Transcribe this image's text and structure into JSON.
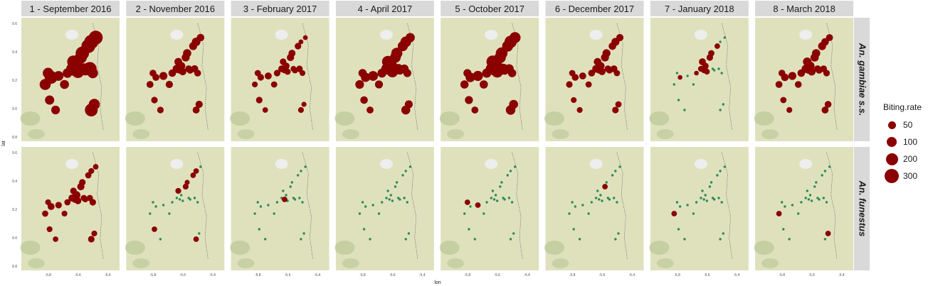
{
  "colors": {
    "high": "#8b0000",
    "low": "#2e8b57",
    "map_bg": "#dfe1bd",
    "strip_bg": "#d9d9d9",
    "water": "#eeeeee",
    "forest": "#b9c795"
  },
  "chart_data": {
    "type": "scatter",
    "title": "",
    "xlabel": "lon",
    "ylabel": "lat",
    "x_ticks": [
      "-5.8",
      "-5.6",
      "-5.4"
    ],
    "y_ticks": [
      "8.8",
      "9.0",
      "9.2",
      "9.4",
      "9.6"
    ],
    "xlim": [
      -5.98,
      -5.32
    ],
    "ylim": [
      8.77,
      9.64
    ],
    "facets": {
      "columns": [
        "1 - September 2016",
        "2 - November 2016",
        "3 - February 2017",
        "4 - April 2017",
        "5 - October 2017",
        "6 - December 2017",
        "7 - January 2018",
        "8 - March 2018"
      ],
      "rows": [
        "An. gambiae s.s.",
        "An. funestus"
      ]
    },
    "legend": {
      "title": "Biting.rate",
      "position": "right",
      "entries": [
        {
          "label": "50",
          "value": 50
        },
        {
          "label": "100",
          "value": 100
        },
        {
          "label": "200",
          "value": 200
        },
        {
          "label": "300",
          "value": 300
        }
      ]
    },
    "sites": [
      {
        "lon": -5.82,
        "lat": 9.17
      },
      {
        "lon": -5.8,
        "lat": 9.25
      },
      {
        "lon": -5.78,
        "lat": 9.22
      },
      {
        "lon": -5.73,
        "lat": 9.23
      },
      {
        "lon": -5.69,
        "lat": 9.17
      },
      {
        "lon": -5.67,
        "lat": 9.25
      },
      {
        "lon": -5.64,
        "lat": 9.28
      },
      {
        "lon": -5.63,
        "lat": 9.33
      },
      {
        "lon": -5.61,
        "lat": 9.3
      },
      {
        "lon": -5.6,
        "lat": 9.26
      },
      {
        "lon": -5.58,
        "lat": 9.36
      },
      {
        "lon": -5.56,
        "lat": 9.28
      },
      {
        "lon": -5.55,
        "lat": 9.27
      },
      {
        "lon": -5.57,
        "lat": 9.39
      },
      {
        "lon": -5.53,
        "lat": 9.44
      },
      {
        "lon": -5.51,
        "lat": 9.47
      },
      {
        "lon": -5.48,
        "lat": 9.5
      },
      {
        "lon": -5.52,
        "lat": 9.28
      },
      {
        "lon": -5.5,
        "lat": 9.25
      },
      {
        "lon": -5.79,
        "lat": 9.06
      },
      {
        "lon": -5.75,
        "lat": 8.99
      },
      {
        "lon": -5.51,
        "lat": 8.99
      },
      {
        "lon": -5.49,
        "lat": 9.03
      },
      {
        "lon": -5.62,
        "lat": 9.27
      }
    ],
    "series": [
      {
        "name": "An. gambiae s.s.",
        "panels": [
          {
            "panel": "1 - September 2016",
            "values": [
              170,
              150,
              250,
              120,
              90,
              110,
              180,
              230,
              260,
              240,
              210,
              160,
              140,
              280,
              300,
              320,
              310,
              290,
              140,
              100,
              80,
              250,
              170,
              200
            ]
          },
          {
            "panel": "2 - November 2016",
            "values": [
              40,
              35,
              40,
              60,
              45,
              50,
              70,
              55,
              60,
              45,
              60,
              40,
              35,
              70,
              60,
              75,
              50,
              45,
              35,
              30,
              30,
              40,
              45,
              40
            ]
          },
          {
            "panel": "3 - February 2017",
            "values": [
              20,
              25,
              30,
              40,
              25,
              30,
              35,
              30,
              40,
              25,
              45,
              20,
              25,
              40,
              30,
              8,
              8,
              30,
              20,
              30,
              15,
              20,
              10,
              25
            ]
          },
          {
            "panel": "4 - April 2017",
            "values": [
              80,
              70,
              100,
              120,
              60,
              90,
              140,
              200,
              230,
              180,
              150,
              120,
              80,
              170,
              130,
              150,
              100,
              80,
              60,
              50,
              40,
              90,
              60,
              120
            ]
          },
          {
            "panel": "5 - October 2017",
            "values": [
              70,
              60,
              110,
              130,
              70,
              100,
              160,
              230,
              260,
              200,
              180,
              140,
              90,
              190,
              160,
              220,
              170,
              100,
              70,
              60,
              40,
              110,
              90,
              140
            ]
          },
          {
            "panel": "6 - December 2017",
            "values": [
              30,
              25,
              35,
              40,
              25,
              35,
              55,
              50,
              60,
              40,
              60,
              35,
              30,
              60,
              50,
              60,
              45,
              40,
              25,
              20,
              20,
              30,
              25,
              30
            ]
          },
          {
            "panel": "7 - January 2018",
            "values": [
              5,
              5,
              6,
              5,
              5,
              6,
              20,
              40,
              30,
              20,
              30,
              5,
              5,
              25,
              15,
              5,
              5,
              5,
              5,
              5,
              5,
              5,
              5,
              20
            ]
          },
          {
            "panel": "8 - March 2018",
            "values": [
              40,
              35,
              50,
              60,
              35,
              50,
              70,
              75,
              80,
              55,
              70,
              40,
              35,
              70,
              60,
              50,
              40,
              35,
              30,
              25,
              20,
              40,
              35,
              45
            ]
          }
        ]
      },
      {
        "name": "An. funestus",
        "panels": [
          {
            "panel": "1 - September 2016",
            "values": [
              25,
              20,
              40,
              30,
              20,
              25,
              40,
              30,
              60,
              35,
              45,
              25,
              20,
              30,
              25,
              20,
              15,
              25,
              30,
              20,
              15,
              30,
              20,
              35
            ]
          },
          {
            "panel": "2 - November 2016",
            "values": [
              5,
              5,
              5,
              5,
              5,
              5,
              5,
              20,
              5,
              5,
              20,
              5,
              5,
              10,
              15,
              15,
              5,
              5,
              5,
              15,
              5,
              15,
              5,
              5
            ]
          },
          {
            "panel": "3 - February 2017",
            "values": [
              5,
              5,
              5,
              5,
              5,
              5,
              5,
              5,
              5,
              5,
              5,
              5,
              5,
              5,
              5,
              5,
              5,
              5,
              5,
              5,
              5,
              5,
              5,
              15
            ]
          },
          {
            "panel": "4 - April 2017",
            "values": [
              5,
              5,
              5,
              5,
              5,
              5,
              5,
              5,
              5,
              5,
              5,
              5,
              5,
              5,
              5,
              5,
              5,
              5,
              5,
              5,
              5,
              5,
              5,
              5
            ]
          },
          {
            "panel": "5 - October 2017",
            "values": [
              5,
              15,
              5,
              15,
              5,
              5,
              5,
              5,
              5,
              5,
              5,
              5,
              5,
              5,
              5,
              5,
              5,
              5,
              5,
              5,
              5,
              5,
              5,
              5
            ]
          },
          {
            "panel": "6 - December 2017",
            "values": [
              5,
              5,
              5,
              5,
              5,
              5,
              5,
              5,
              5,
              5,
              15,
              5,
              5,
              5,
              5,
              5,
              5,
              5,
              5,
              5,
              5,
              5,
              5,
              5
            ]
          },
          {
            "panel": "7 - January 2018",
            "values": [
              15,
              5,
              5,
              5,
              5,
              5,
              5,
              5,
              5,
              5,
              5,
              5,
              5,
              5,
              5,
              5,
              5,
              5,
              5,
              5,
              5,
              5,
              5,
              5
            ]
          },
          {
            "panel": "8 - March 2018",
            "values": [
              15,
              5,
              5,
              5,
              5,
              5,
              5,
              5,
              5,
              5,
              5,
              5,
              5,
              5,
              5,
              5,
              5,
              5,
              5,
              5,
              5,
              5,
              15,
              5
            ]
          }
        ]
      }
    ]
  }
}
